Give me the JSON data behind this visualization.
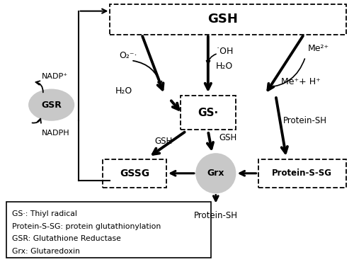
{
  "bg_color": "#ffffff",
  "fig_width": 5.0,
  "fig_height": 3.7,
  "dpi": 100,
  "legend_lines": [
    "GS·: Thiyl radical",
    "Protein-S-SG: protein glutathionylation",
    "GSR: Glutathione Reductase",
    "Grx: Glutaredoxin"
  ]
}
